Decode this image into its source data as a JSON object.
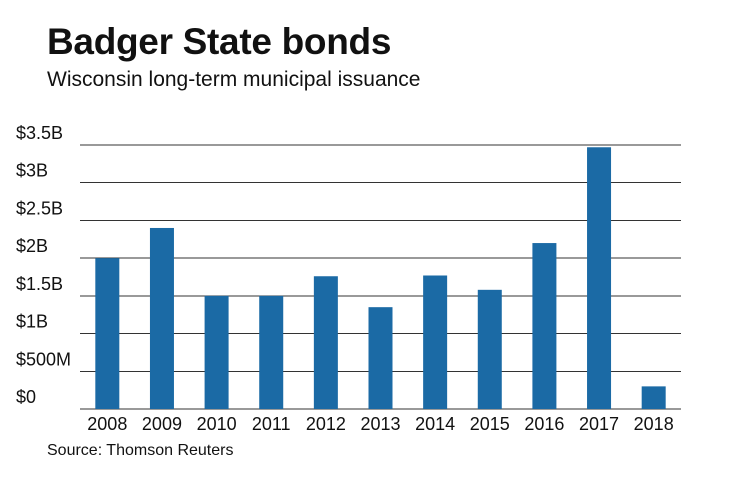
{
  "chart_data": {
    "type": "bar",
    "title": "Badger State bonds",
    "subtitle": "Wisconsin long-term municipal issuance",
    "xlabel": "",
    "ylabel": "",
    "categories": [
      "2008",
      "2009",
      "2010",
      "2011",
      "2012",
      "2013",
      "2014",
      "2015",
      "2016",
      "2017",
      "2018"
    ],
    "values": [
      2.0,
      2.4,
      1.5,
      1.5,
      1.76,
      1.35,
      1.77,
      1.58,
      2.2,
      3.47,
      0.3
    ],
    "value_unit": "billions USD",
    "ylim": [
      0,
      3.5
    ],
    "yticks": [
      0,
      0.5,
      1,
      1.5,
      2,
      2.5,
      3,
      3.5
    ],
    "ytick_labels": [
      "$0",
      "$500M",
      "$1B",
      "$1.5B",
      "$2B",
      "$2.5B",
      "$3B",
      "$3.5B"
    ],
    "grid": true,
    "bar_color": "#1b6aa5",
    "grid_color": "#333333",
    "source": "Source: Thomson Reuters"
  }
}
